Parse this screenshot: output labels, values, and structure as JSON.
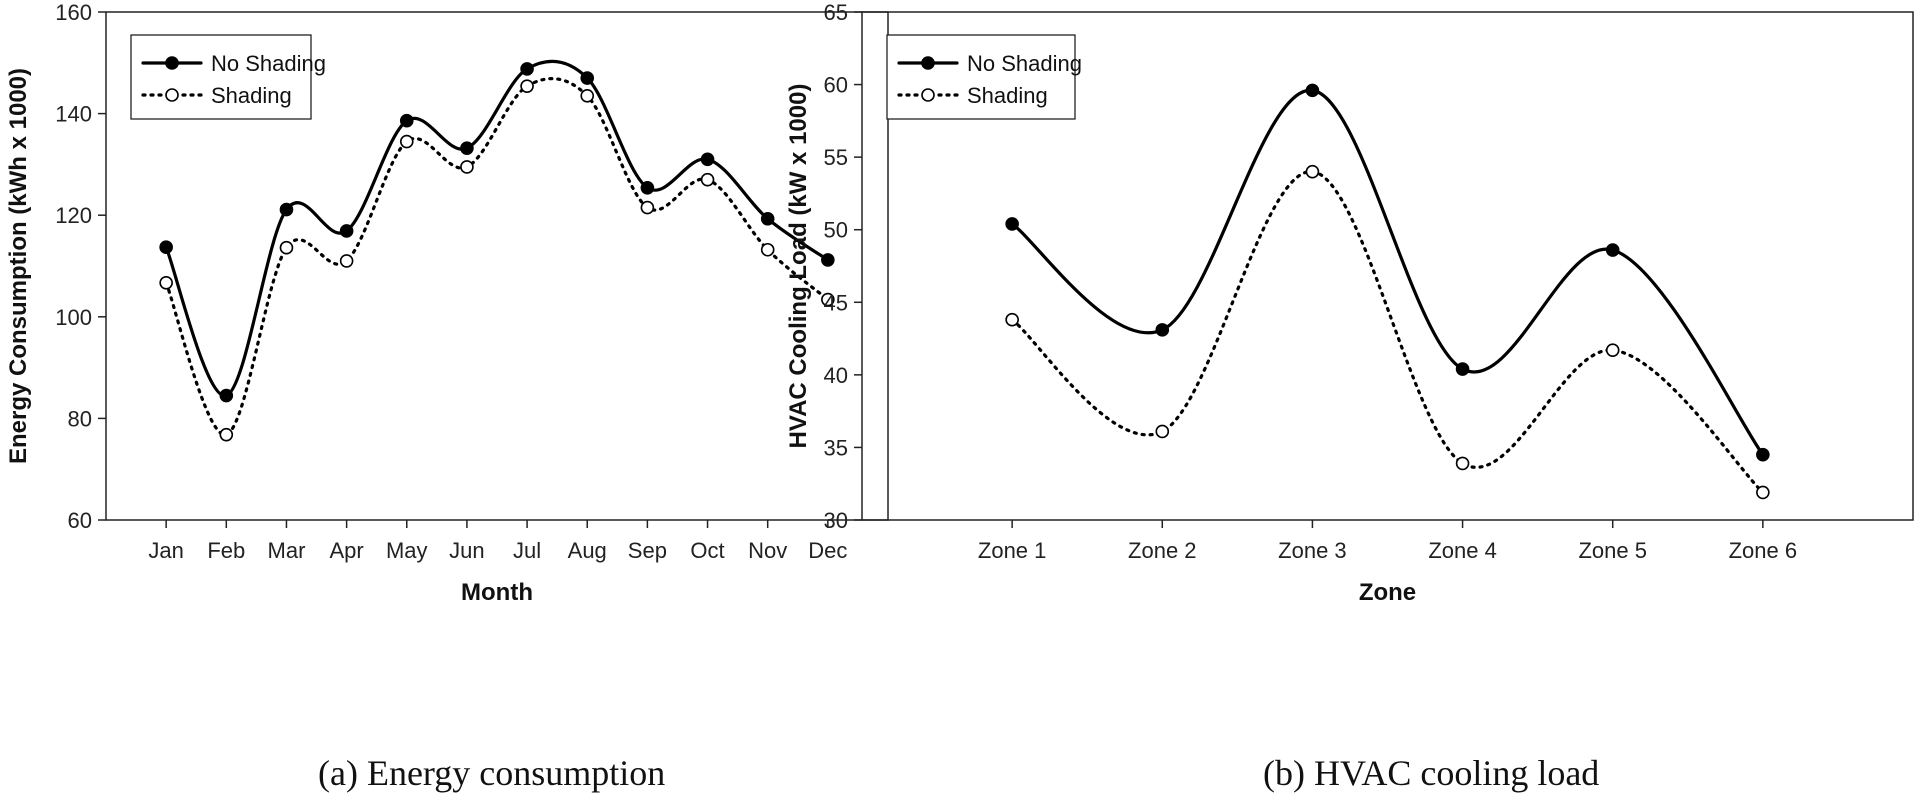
{
  "chart_data": [
    {
      "type": "line",
      "caption": "(a) Energy consumption",
      "xlabel": "Month",
      "ylabel": "Energy Consumption (kWh x 1000)",
      "categories": [
        "Jan",
        "Feb",
        "Mar",
        "Apr",
        "May",
        "Jun",
        "Jul",
        "Aug",
        "Sep",
        "Oct",
        "Nov",
        "Dec"
      ],
      "ylim": [
        60,
        160
      ],
      "yticks": [
        60,
        80,
        100,
        120,
        140,
        160
      ],
      "legend_position": "top-left",
      "series": [
        {
          "name": "No Shading",
          "style": "solid",
          "marker": "filled-circle",
          "values": [
            113.7,
            84.5,
            121.1,
            116.9,
            138.6,
            133.2,
            148.8,
            147.0,
            125.4,
            131.0,
            119.3,
            111.2
          ]
        },
        {
          "name": "Shading",
          "style": "dotted",
          "marker": "open-circle",
          "values": [
            106.7,
            76.8,
            113.6,
            111.0,
            134.5,
            129.5,
            145.4,
            143.5,
            121.5,
            127.0,
            113.2,
            103.4
          ]
        }
      ]
    },
    {
      "type": "line",
      "caption": "(b) HVAC cooling load",
      "xlabel": "Zone",
      "ylabel": "HVAC Cooling Load (kW x 1000)",
      "categories": [
        "Zone 1",
        "Zone 2",
        "Zone 3",
        "Zone 4",
        "Zone 5",
        "Zone 6"
      ],
      "ylim": [
        30,
        65
      ],
      "yticks": [
        30,
        35,
        40,
        45,
        50,
        55,
        60,
        65
      ],
      "legend_position": "top-left",
      "series": [
        {
          "name": "No Shading",
          "style": "solid",
          "marker": "filled-circle",
          "values": [
            50.4,
            43.1,
            59.6,
            40.4,
            48.6,
            34.5
          ]
        },
        {
          "name": "Shading",
          "style": "dotted",
          "marker": "open-circle",
          "values": [
            43.8,
            36.1,
            54.0,
            33.9,
            41.7,
            31.9
          ]
        }
      ]
    }
  ],
  "colors": {
    "line": "#000000",
    "axis": "#222222",
    "marker_fill_open": "#ffffff"
  }
}
